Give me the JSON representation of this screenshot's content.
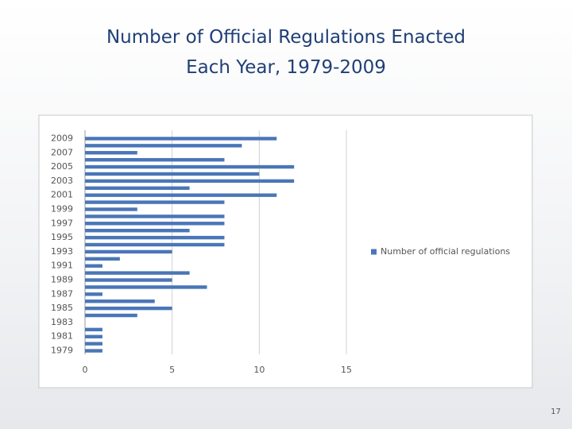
{
  "chart_data": {
    "type": "barh",
    "title": [
      "Number of Official Regulations Enacted",
      "Each Year, 1979-2009"
    ],
    "categories": [
      "2009",
      null,
      "2007",
      null,
      "2005",
      null,
      "2003",
      null,
      "2001",
      null,
      "1999",
      null,
      "1997",
      null,
      "1995",
      null,
      "1993",
      null,
      "1991",
      null,
      "1989",
      null,
      "1987",
      null,
      "1985",
      null,
      "1983",
      null,
      "1981",
      null,
      "1979"
    ],
    "series": [
      {
        "name": "Number of official regulations",
        "color": "#4a76b8",
        "values": [
          11,
          9,
          3,
          8,
          12,
          10,
          12,
          6,
          11,
          8,
          3,
          8,
          8,
          6,
          8,
          8,
          5,
          2,
          1,
          6,
          5,
          7,
          1,
          4,
          5,
          3,
          0,
          1,
          1,
          1,
          1
        ]
      }
    ],
    "xlim": [
      0,
      15
    ],
    "xticks": [
      0,
      5,
      10,
      15
    ],
    "grid": true,
    "legend": "right"
  },
  "page_number": "17"
}
